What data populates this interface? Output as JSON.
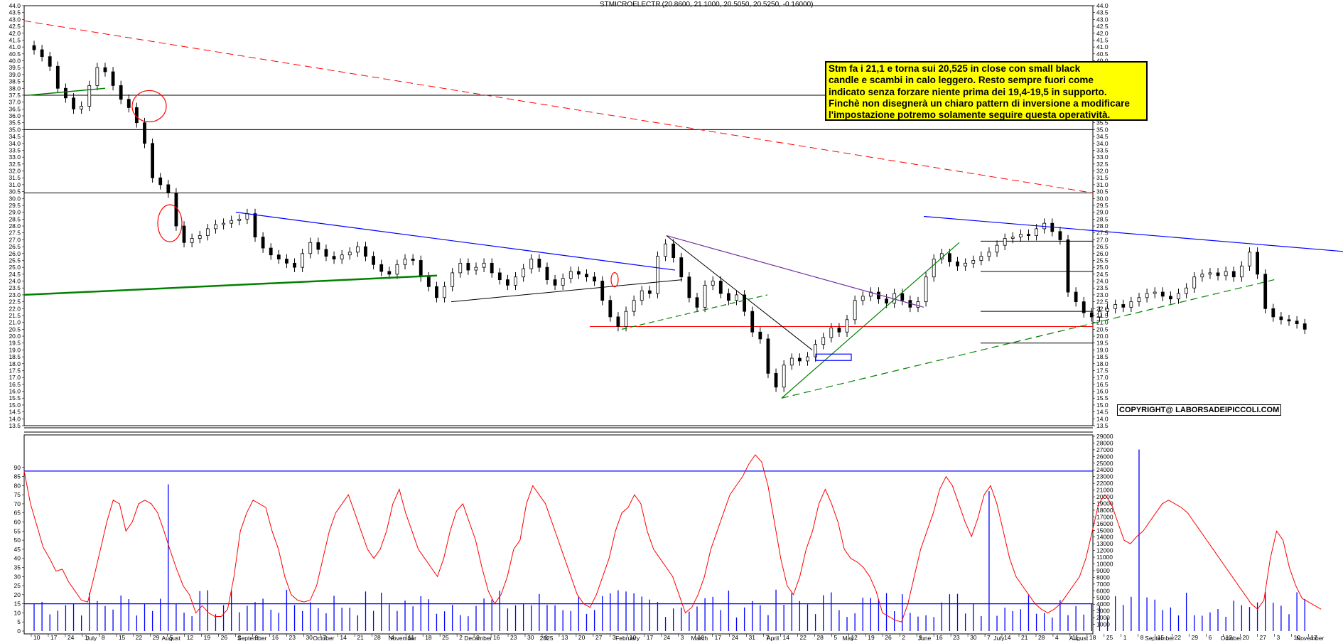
{
  "header": {
    "symbol": "STMICROELECTR",
    "ohlc": "(20.8600, 21.1000, 20.5050, 20.5250, -0.16000)"
  },
  "annotation": {
    "lines": [
      "Stm fa i 21,1 e torna sui 20,525 in close con small black",
      "candle e scambi in calo leggero. Resto sempre fuori come",
      "indicato senza forzare niente prima dei 19,4-19,5 in supporto.",
      "Finchè non disegnerà un chiaro pattern di inversione a modificare",
      "l'impostazione potremo solamente seguire questa operatività."
    ]
  },
  "copyright": "COPYRIGHT@ LABORSADEIPICCOLI.COM",
  "colors": {
    "candle": "#000000",
    "volume": "#0000ff",
    "oscillator": "#ff0000",
    "trend_blue": "#0000ff",
    "trend_green": "#008000",
    "trend_red": "#ff0000",
    "highlight": "#ffff00"
  },
  "chart_data": [
    {
      "type": "candlestick",
      "title": "STMICROELECTR",
      "ylim": [
        13.5,
        44.0
      ],
      "y_ticks": [
        "44.0",
        "43.5",
        "43.0",
        "42.5",
        "42.0",
        "41.5",
        "41.0",
        "40.5",
        "40.0",
        "39.5",
        "39.0",
        "38.5",
        "38.0",
        "37.5",
        "37.0",
        "36.5",
        "36.0",
        "35.5",
        "35.0",
        "34.5",
        "34.0",
        "33.5",
        "33.0",
        "32.5",
        "32.0",
        "31.5",
        "31.0",
        "30.5",
        "30.0",
        "29.5",
        "29.0",
        "28.5",
        "28.0",
        "27.5",
        "27.0",
        "26.5",
        "26.0",
        "25.5",
        "25.0",
        "24.5",
        "24.0",
        "23.5",
        "23.0",
        "22.5",
        "22.0",
        "21.5",
        "21.0",
        "20.5",
        "20.0",
        "19.5",
        "19.0",
        "18.5",
        "18.0",
        "17.5",
        "17.0",
        "16.5",
        "16.0",
        "15.5",
        "15.0",
        "14.5",
        "14.0",
        "13.5"
      ],
      "horizontal_levels": [
        37.5,
        35.0,
        30.4,
        26.9,
        24.7,
        21.8,
        20.7,
        19.5
      ],
      "close_series": [
        40.8,
        40.3,
        39.6,
        38.0,
        37.3,
        36.5,
        36.7,
        38.2,
        39.5,
        39.2,
        38.2,
        37.2,
        36.6,
        35.5,
        34.0,
        31.5,
        31.0,
        30.4,
        28.0,
        26.8,
        27.1,
        27.3,
        27.8,
        28.1,
        28.2,
        28.4,
        28.5,
        28.9,
        27.2,
        26.4,
        25.9,
        25.6,
        25.3,
        25.0,
        26.0,
        26.8,
        26.3,
        25.8,
        25.6,
        25.9,
        26.1,
        26.5,
        25.8,
        25.2,
        24.7,
        24.5,
        25.2,
        25.6,
        25.5,
        24.3,
        23.6,
        22.8,
        23.6,
        24.6,
        25.3,
        24.8,
        25.0,
        25.3,
        24.6,
        24.1,
        23.7,
        24.3,
        24.9,
        25.6,
        25.0,
        24.1,
        23.7,
        24.2,
        24.7,
        24.5,
        24.3,
        24.0,
        22.6,
        21.4,
        20.7,
        21.8,
        22.6,
        23.3,
        23.1,
        25.8,
        26.7,
        25.7,
        24.3,
        22.8,
        22.1,
        23.7,
        24.0,
        23.1,
        22.6,
        23.0,
        21.8,
        20.3,
        19.8,
        17.3,
        16.3,
        17.9,
        18.4,
        18.2,
        18.5,
        19.4,
        19.9,
        20.6,
        20.3,
        21.2,
        22.6,
        22.9,
        23.2,
        22.7,
        22.4,
        23.1,
        22.6,
        22.1,
        22.5,
        24.3,
        25.6,
        26.0,
        25.4,
        25.1,
        25.3,
        25.5,
        25.8,
        26.1,
        26.6,
        27.1,
        27.2,
        27.4,
        27.3,
        27.8,
        28.2,
        27.6,
        27.0,
        23.2,
        22.5,
        21.7,
        21.4,
        21.8,
        22.0,
        22.3,
        22.1,
        22.5,
        22.8,
        23.1,
        23.2,
        22.9,
        22.7,
        23.1,
        23.5,
        24.3,
        24.5,
        24.6,
        24.4,
        24.7,
        24.3,
        25.1,
        26.1,
        24.5,
        22.0,
        21.4,
        21.2,
        21.1,
        20.9,
        20.5
      ],
      "x_tick_labels": [
        "10",
        "17",
        "24",
        "1",
        "8",
        "15",
        "22",
        "29",
        "5",
        "12",
        "19",
        "26",
        "2",
        "9",
        "16",
        "23",
        "30",
        "7",
        "14",
        "21",
        "28",
        "4",
        "11",
        "18",
        "25",
        "2",
        "9",
        "16",
        "23",
        "30",
        "6",
        "13",
        "20",
        "27",
        "3",
        "10",
        "17",
        "24",
        "3",
        "10",
        "17",
        "24",
        "31",
        "7",
        "14",
        "22",
        "28",
        "5",
        "12",
        "19",
        "26",
        "2",
        "9",
        "16",
        "23",
        "30",
        "7",
        "14",
        "21",
        "28",
        "4",
        "11",
        "18",
        "25",
        "1",
        "8",
        "15",
        "22",
        "29",
        "6",
        "13",
        "20",
        "27",
        "3",
        "10",
        "17"
      ],
      "month_labels": [
        "July",
        "August",
        "September",
        "October",
        "November",
        "December",
        "2025",
        "February",
        "March",
        "April",
        "May",
        "June",
        "July",
        "August",
        "September",
        "October",
        "November"
      ]
    },
    {
      "type": "line+bar",
      "series": [
        {
          "values": [
            88,
            70,
            58,
            46,
            40,
            33,
            34,
            27,
            22,
            17,
            16,
            30,
            45,
            60,
            72,
            70,
            55,
            60,
            70,
            72,
            70,
            65,
            55,
            44,
            34,
            25,
            20,
            10,
            14,
            10,
            8,
            8,
            12,
            30,
            55,
            65,
            72,
            70,
            68,
            55,
            45,
            30,
            20,
            17,
            16,
            17,
            25,
            40,
            55,
            65,
            70,
            75,
            65,
            55,
            45,
            40,
            45,
            55,
            70,
            78,
            65,
            55,
            45,
            40,
            35,
            30,
            40,
            55,
            66,
            70,
            60,
            50,
            35,
            22,
            15,
            20,
            30,
            45,
            50,
            70,
            80,
            75,
            70,
            60,
            50,
            40,
            30,
            20,
            15,
            13,
            20,
            30,
            40,
            55,
            65,
            68,
            75,
            70,
            55,
            45,
            40,
            35,
            30,
            20,
            10,
            13,
            20,
            30,
            45,
            55,
            65,
            75,
            80,
            85,
            92,
            97,
            93,
            80,
            60,
            40,
            25,
            20,
            30,
            45,
            55,
            70,
            78,
            70,
            60,
            45,
            40,
            38,
            35,
            30,
            22,
            10,
            8,
            6,
            5,
            15,
            30,
            45,
            55,
            65,
            78,
            85,
            80,
            70,
            60,
            52,
            62,
            75,
            80,
            70,
            55,
            40,
            30,
            25,
            20,
            15,
            12,
            10,
            12,
            15,
            20,
            25,
            30,
            40,
            55,
            70,
            75,
            70,
            60,
            50,
            48,
            52,
            55,
            60,
            65,
            70,
            72,
            70,
            68,
            65,
            60,
            55,
            50,
            45,
            40,
            35,
            30,
            25,
            20,
            15,
            12,
            17,
            40,
            55,
            50,
            35,
            25,
            18,
            16,
            14,
            12
          ]
        }
      ],
      "ylim": [
        0,
        95
      ],
      "y_ticks_left": [
        "90",
        "85",
        "80",
        "75",
        "70",
        "65",
        "60",
        "55",
        "50",
        "45",
        "40",
        "35",
        "30",
        "25",
        "20",
        "15",
        "10",
        "5",
        "0"
      ],
      "y_ticks_right": [
        "29000",
        "28000",
        "27000",
        "26000",
        "25000",
        "24000",
        "23000",
        "22000",
        "21000",
        "20000",
        "19000",
        "18000",
        "17000",
        "16000",
        "15000",
        "14000",
        "13000",
        "12000",
        "11000",
        "10000",
        "9000",
        "8000",
        "7000",
        "6000",
        "5000",
        "4000",
        "3000",
        "2000",
        "1000"
      ],
      "horizontal_levels": [
        88,
        15
      ],
      "volume_scale_max": 29000
    }
  ]
}
